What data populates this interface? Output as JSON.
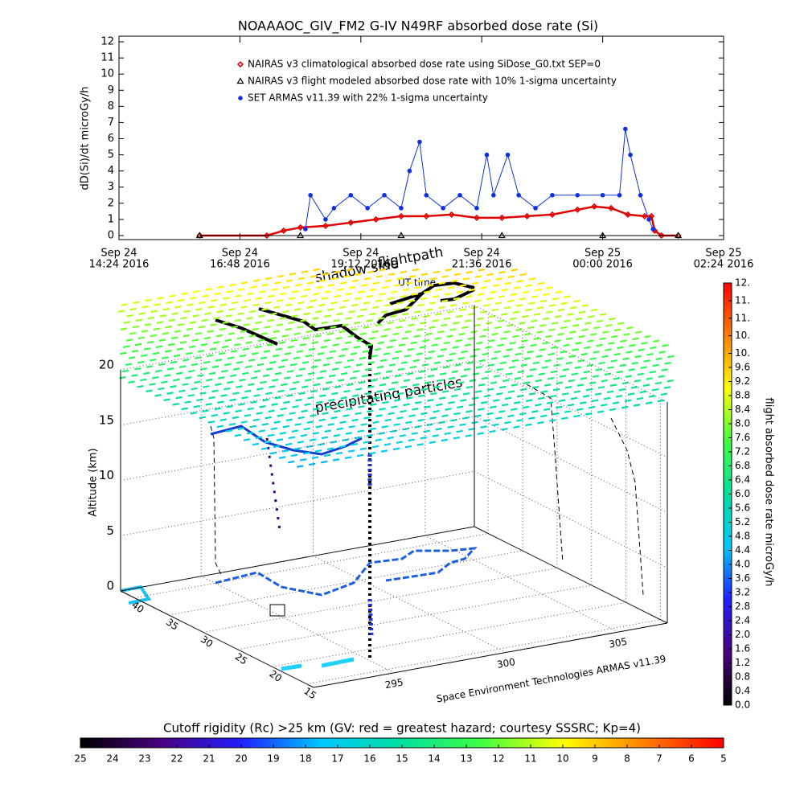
{
  "chart_data": [
    {
      "type": "line",
      "title": "NOAAAOC_GIV_FM2 G-IV    N49RF  absorbed dose rate (Si)",
      "ylabel": "dD(Si)/dt microGy/h",
      "xlim": [
        "2016-09-24T14:24",
        "2016-09-25T02:24"
      ],
      "xticks": [
        {
          "value": "2016-09-24T14:24",
          "label": [
            "Sep 24",
            "14:24 2016"
          ]
        },
        {
          "value": "2016-09-24T16:48",
          "label": [
            "Sep 24",
            "16:48 2016"
          ]
        },
        {
          "value": "2016-09-24T19:12",
          "label": [
            "Sep 24",
            "19:12 2016"
          ]
        },
        {
          "value": "2016-09-24T21:36",
          "label": [
            "Sep 24",
            "21:36 2016"
          ]
        },
        {
          "value": "2016-09-25T00:00",
          "label": [
            "Sep 25",
            "00:00 2016"
          ]
        },
        {
          "value": "2016-09-25T02:24",
          "label": [
            "Sep 25",
            "02:24 2016"
          ]
        }
      ],
      "ylim": [
        -0.25,
        12.35
      ],
      "yticks": [
        0,
        1,
        2,
        3,
        4,
        5,
        6,
        7,
        8,
        9,
        10,
        11,
        12
      ],
      "legend": "upper center",
      "series": [
        {
          "name": "NAIRAS v3 climatological absorbed dose rate using SiDose_G0.txt SEP=0",
          "color": "#e00000",
          "marker": "diamond",
          "x": [
            "2016-09-24T16:00",
            "2016-09-24T17:20",
            "2016-09-24T17:40",
            "2016-09-24T18:00",
            "2016-09-24T18:30",
            "2016-09-24T19:00",
            "2016-09-24T19:30",
            "2016-09-24T20:00",
            "2016-09-24T20:30",
            "2016-09-24T21:00",
            "2016-09-24T21:30",
            "2016-09-24T22:00",
            "2016-09-24T22:30",
            "2016-09-24T23:00",
            "2016-09-24T23:30",
            "2016-09-24T23:50",
            "2016-09-25T00:10",
            "2016-09-25T00:30",
            "2016-09-25T00:50",
            "2016-09-25T00:58",
            "2016-09-25T01:02",
            "2016-09-25T01:10",
            "2016-09-25T01:30"
          ],
          "values": [
            0,
            0,
            0.3,
            0.5,
            0.6,
            0.8,
            1.0,
            1.2,
            1.2,
            1.3,
            1.1,
            1.1,
            1.2,
            1.3,
            1.6,
            1.8,
            1.7,
            1.3,
            1.2,
            1.2,
            0.3,
            0,
            0
          ]
        },
        {
          "name": "NAIRAS v3 flight modeled absorbed dose rate with 10% 1-sigma uncertainty",
          "color": "#000000",
          "marker": "triangle",
          "x": [
            "2016-09-24T16:00",
            "2016-09-24T18:00",
            "2016-09-24T20:00",
            "2016-09-24T22:00",
            "2016-09-25T00:00",
            "2016-09-25T01:30"
          ],
          "values": [
            0,
            0,
            0,
            0,
            0,
            0
          ]
        },
        {
          "name": "SET ARMAS v11.39 with 22% 1-sigma uncertainty",
          "color": "#1030e0",
          "marker": "circle",
          "x": [
            "2016-09-24T18:06",
            "2016-09-24T18:12",
            "2016-09-24T18:30",
            "2016-09-24T18:40",
            "2016-09-24T19:00",
            "2016-09-24T19:20",
            "2016-09-24T19:40",
            "2016-09-24T20:00",
            "2016-09-24T20:10",
            "2016-09-24T20:22",
            "2016-09-24T20:30",
            "2016-09-24T20:50",
            "2016-09-24T21:10",
            "2016-09-24T21:30",
            "2016-09-24T21:42",
            "2016-09-24T21:50",
            "2016-09-24T22:07",
            "2016-09-24T22:20",
            "2016-09-24T22:40",
            "2016-09-24T23:00",
            "2016-09-24T23:30",
            "2016-09-25T00:00",
            "2016-09-25T00:20",
            "2016-09-25T00:27",
            "2016-09-25T00:33",
            "2016-09-25T00:45",
            "2016-09-25T00:55",
            "2016-09-25T01:00"
          ],
          "values": [
            0.4,
            2.5,
            1.0,
            1.7,
            2.5,
            1.7,
            2.5,
            1.7,
            4.0,
            5.8,
            2.5,
            1.7,
            2.5,
            1.7,
            5.0,
            2.5,
            5.0,
            2.5,
            1.7,
            2.5,
            2.5,
            2.5,
            2.5,
            6.6,
            5.0,
            2.5,
            1.0,
            0.4
          ]
        }
      ]
    },
    {
      "type": "surface3d",
      "annotations": [
        "shadow side",
        "flightpath",
        "UT time",
        "precipitating particles"
      ],
      "zlabel": "Altitude (km)",
      "credit": "Space Environment Technologies ARMAS v11.39",
      "xlim": [
        291.4,
        307.2
      ],
      "xticks": [
        295,
        300,
        305
      ],
      "ylim": [
        14,
        42
      ],
      "yticks": [
        40,
        35,
        30,
        25,
        20,
        15
      ],
      "zlim": [
        0,
        20
      ],
      "zticks": [
        0,
        5,
        10,
        15,
        20
      ],
      "grid": true,
      "colormap": [
        "#000000",
        "#4b0082",
        "#2020ff",
        "#00c8ff",
        "#00e0a0",
        "#40ff40",
        "#ffff00",
        "#ff8000",
        "#ff0000"
      ],
      "colorbars": [
        {
          "label": "flight absorbed dose rate microGy/h",
          "ylim": [
            0,
            12
          ],
          "ticks": [
            {
              "value": 0,
              "label": "0.0"
            },
            0.4,
            0.8,
            1.2,
            1.6,
            {
              "value": 2,
              "label": "2.0"
            },
            2.4,
            2.8,
            3.2,
            3.6,
            {
              "value": 4,
              "label": "4.0"
            },
            4.4,
            4.8,
            5.2,
            5.6,
            {
              "value": 6,
              "label": "6.0"
            },
            6.4,
            6.8,
            7.2,
            7.6,
            {
              "value": 8,
              "label": "8.0"
            },
            8.4,
            8.8,
            9.2,
            9.6,
            {
              "value": 10,
              "label": "10."
            },
            {
              "value": 10.5,
              "label": "10."
            },
            {
              "value": 11,
              "label": "11."
            },
            {
              "value": 11.5,
              "label": "11."
            },
            {
              "value": 12,
              "label": "12."
            }
          ]
        },
        {
          "label": "Cutoff rigidity (Rc) >25 km (GV: red = greatest hazard; courtesy SSSRC; Kp=4)",
          "xlim": [
            25,
            5
          ],
          "ticks": [
            25,
            24,
            23,
            22,
            21,
            20,
            19,
            18,
            17,
            16,
            15,
            14,
            13,
            12,
            11,
            10,
            9,
            8,
            7,
            6,
            5
          ]
        }
      ]
    }
  ]
}
